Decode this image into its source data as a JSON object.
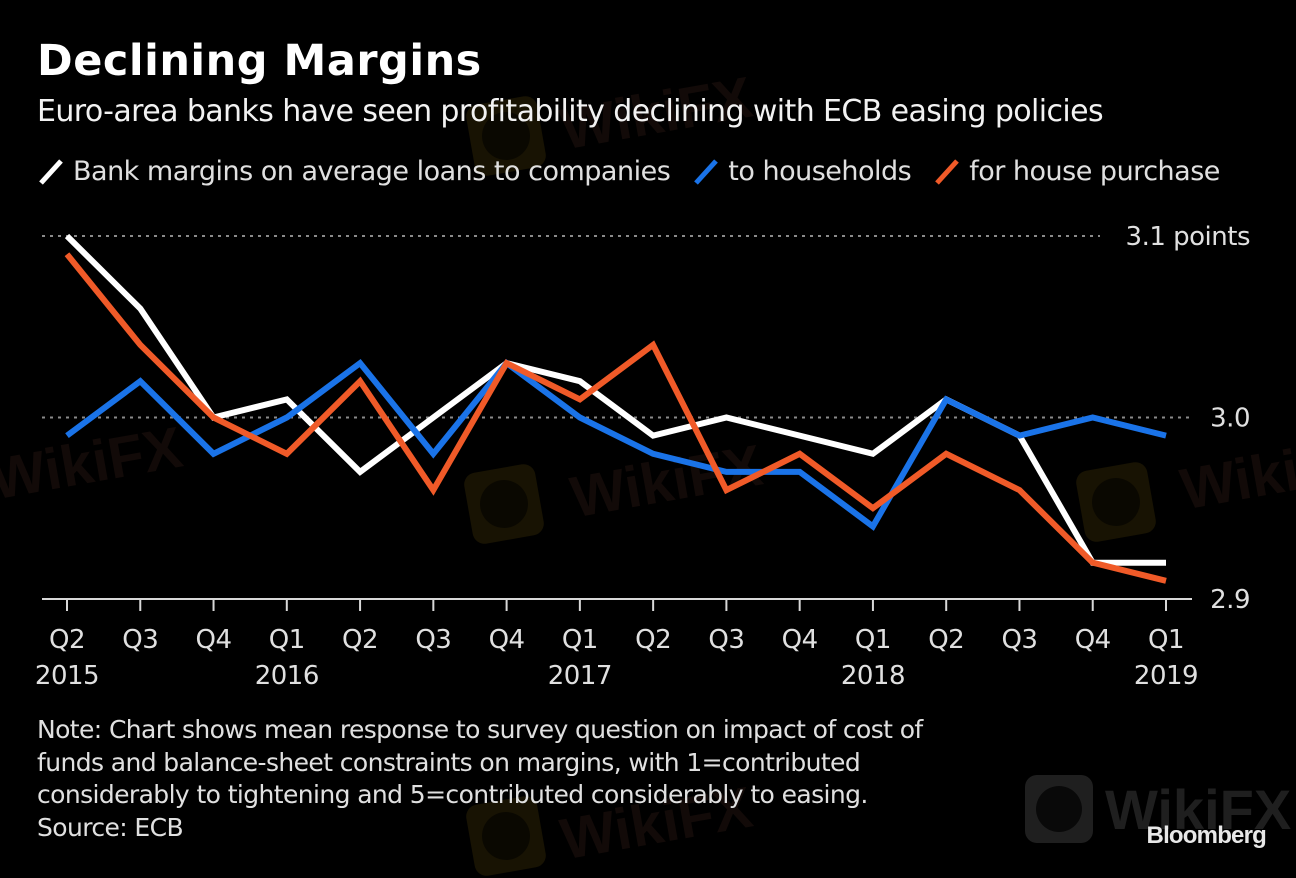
{
  "header": {
    "title": "Declining Margins",
    "subtitle": "Euro-area banks have seen profitability declining with ECB easing policies"
  },
  "legend": [
    {
      "label": "Bank margins on average loans to companies",
      "color": "#ffffff",
      "series": "companies"
    },
    {
      "label": "to households",
      "color": "#1a73e8",
      "series": "households"
    },
    {
      "label": "for house purchase",
      "color": "#f05a28",
      "series": "house_purchase"
    }
  ],
  "chart_data": {
    "type": "line",
    "title": "Declining Margins",
    "subtitle": "Euro-area banks have seen profitability declining with ECB easing policies",
    "xlabel": "",
    "ylabel": "points",
    "x": [
      "Q2 2015",
      "Q3 2015",
      "Q4 2015",
      "Q1 2016",
      "Q2 2016",
      "Q3 2016",
      "Q4 2016",
      "Q1 2017",
      "Q2 2017",
      "Q3 2017",
      "Q4 2017",
      "Q1 2018",
      "Q2 2018",
      "Q3 2018",
      "Q4 2018",
      "Q1 2019"
    ],
    "x_tick_labels": [
      {
        "quarter": "Q2",
        "year": "2015"
      },
      {
        "quarter": "Q3",
        "year": ""
      },
      {
        "quarter": "Q4",
        "year": ""
      },
      {
        "quarter": "Q1",
        "year": "2016"
      },
      {
        "quarter": "Q2",
        "year": ""
      },
      {
        "quarter": "Q3",
        "year": ""
      },
      {
        "quarter": "Q4",
        "year": ""
      },
      {
        "quarter": "Q1",
        "year": "2017"
      },
      {
        "quarter": "Q2",
        "year": ""
      },
      {
        "quarter": "Q3",
        "year": ""
      },
      {
        "quarter": "Q4",
        "year": ""
      },
      {
        "quarter": "Q1",
        "year": "2018"
      },
      {
        "quarter": "Q2",
        "year": ""
      },
      {
        "quarter": "Q3",
        "year": ""
      },
      {
        "quarter": "Q4",
        "year": ""
      },
      {
        "quarter": "Q1",
        "year": "2019"
      }
    ],
    "y_ticks": [
      {
        "value": 3.1,
        "label": "3.1 points"
      },
      {
        "value": 3.0,
        "label": "3.0"
      },
      {
        "value": 2.9,
        "label": "2.9"
      }
    ],
    "ylim": [
      2.9,
      3.1
    ],
    "grid": "dotted horizontal at 3.0 and 3.1",
    "legend_position": "top",
    "series": [
      {
        "name": "Bank margins on average loans to companies",
        "key": "companies",
        "color": "#ffffff",
        "values": [
          3.1,
          3.06,
          3.0,
          3.01,
          2.97,
          3.0,
          3.03,
          3.02,
          2.99,
          3.0,
          2.99,
          2.98,
          3.01,
          2.99,
          2.92,
          2.92
        ]
      },
      {
        "name": "to households",
        "key": "households",
        "color": "#1a73e8",
        "values": [
          2.99,
          3.02,
          2.98,
          3.0,
          3.03,
          2.98,
          3.03,
          3.0,
          2.98,
          2.97,
          2.97,
          2.94,
          3.01,
          2.99,
          3.0,
          2.99
        ]
      },
      {
        "name": "for house purchase",
        "key": "house_purchase",
        "color": "#f05a28",
        "values": [
          3.09,
          3.04,
          3.0,
          2.98,
          3.02,
          2.96,
          3.03,
          3.01,
          3.04,
          2.96,
          2.98,
          2.95,
          2.98,
          2.96,
          2.92,
          2.91
        ]
      }
    ]
  },
  "footer": {
    "note_lines": [
      "Note: Chart shows mean response to survey question on impact of cost of",
      "funds and balance-sheet constraints on margins, with 1=contributed",
      "considerably to tightening and 5=contributed considerably to easing."
    ],
    "source": "Source: ECB",
    "brand": "Bloomberg"
  },
  "watermark": {
    "text": "WikiFX"
  }
}
